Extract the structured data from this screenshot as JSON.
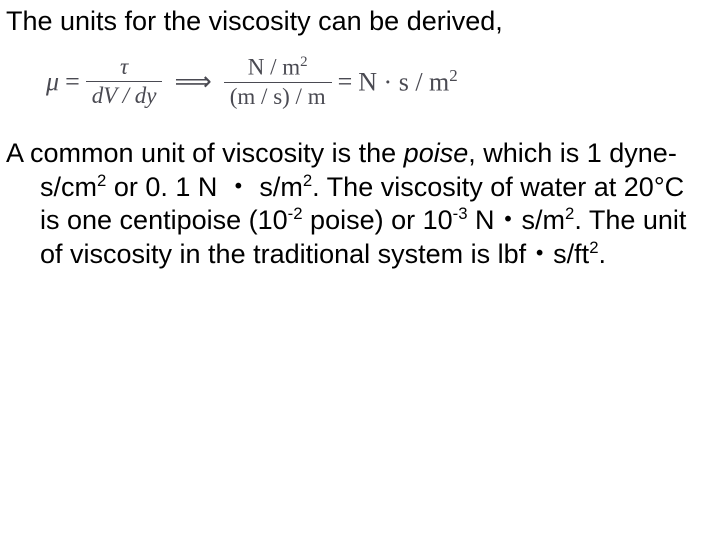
{
  "intro": "The units for the viscosity can be derived,",
  "equation": {
    "mu": "μ",
    "eq": "=",
    "frac1_num": "τ",
    "frac1_den": "dV / dy",
    "arrow": "⟹",
    "frac2_num": "N / m",
    "frac2_num_sup": "2",
    "frac2_den": "(m / s) / m",
    "rhs_eq": "=",
    "rhs_a": "N · s / m",
    "rhs_sup": "2"
  },
  "p": {
    "t1": "A common unit of viscosity is the ",
    "poise": "poise",
    "t2": ", which is 1 dyne-s/cm",
    "s1": "2",
    "t3": " or 0. 1 N ・ s/m",
    "s2": "2",
    "t4": ". The viscosity of water at 20°C is one centipoise (10",
    "s3": "-2",
    "t5": " poise) or 10",
    "s4": "-3",
    "t6": " N・s/m",
    "s5": "2",
    "t7": ". The unit of viscosity in the traditional system is lbf・s/ft",
    "s6": "2",
    "t8": "."
  }
}
